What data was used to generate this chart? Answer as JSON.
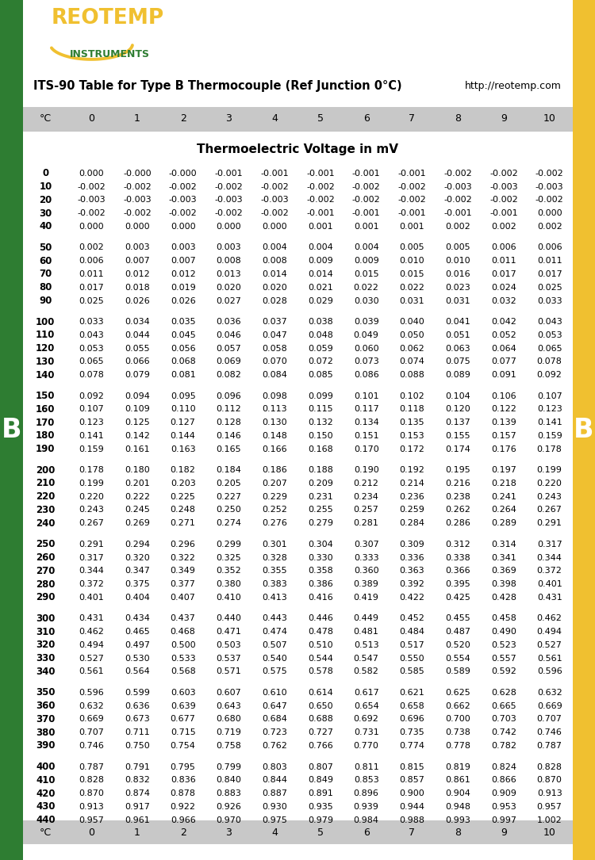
{
  "title": "ITS-90 Table for Type B Thermocouple (Ref Junction 0°C)",
  "subtitle": "Thermoelectric Voltage in mV",
  "url": "http://reotemp.com",
  "col_headers": [
    "°C",
    "0",
    "1",
    "2",
    "3",
    "4",
    "5",
    "6",
    "7",
    "8",
    "9",
    "10"
  ],
  "table_data": [
    [
      "0",
      "0.000",
      "-0.000",
      "-0.000",
      "-0.001",
      "-0.001",
      "-0.001",
      "-0.001",
      "-0.001",
      "-0.002",
      "-0.002",
      "-0.002"
    ],
    [
      "10",
      "-0.002",
      "-0.002",
      "-0.002",
      "-0.002",
      "-0.002",
      "-0.002",
      "-0.002",
      "-0.002",
      "-0.003",
      "-0.003",
      "-0.003"
    ],
    [
      "20",
      "-0.003",
      "-0.003",
      "-0.003",
      "-0.003",
      "-0.003",
      "-0.002",
      "-0.002",
      "-0.002",
      "-0.002",
      "-0.002",
      "-0.002"
    ],
    [
      "30",
      "-0.002",
      "-0.002",
      "-0.002",
      "-0.002",
      "-0.002",
      "-0.001",
      "-0.001",
      "-0.001",
      "-0.001",
      "-0.001",
      "0.000"
    ],
    [
      "40",
      "0.000",
      "0.000",
      "0.000",
      "0.000",
      "0.000",
      "0.001",
      "0.001",
      "0.001",
      "0.002",
      "0.002",
      "0.002"
    ],
    [
      "",
      "",
      "",
      "",
      "",
      "",
      "",
      "",
      "",
      "",
      "",
      ""
    ],
    [
      "50",
      "0.002",
      "0.003",
      "0.003",
      "0.003",
      "0.004",
      "0.004",
      "0.004",
      "0.005",
      "0.005",
      "0.006",
      "0.006"
    ],
    [
      "60",
      "0.006",
      "0.007",
      "0.007",
      "0.008",
      "0.008",
      "0.009",
      "0.009",
      "0.010",
      "0.010",
      "0.011",
      "0.011"
    ],
    [
      "70",
      "0.011",
      "0.012",
      "0.012",
      "0.013",
      "0.014",
      "0.014",
      "0.015",
      "0.015",
      "0.016",
      "0.017",
      "0.017"
    ],
    [
      "80",
      "0.017",
      "0.018",
      "0.019",
      "0.020",
      "0.020",
      "0.021",
      "0.022",
      "0.022",
      "0.023",
      "0.024",
      "0.025"
    ],
    [
      "90",
      "0.025",
      "0.026",
      "0.026",
      "0.027",
      "0.028",
      "0.029",
      "0.030",
      "0.031",
      "0.031",
      "0.032",
      "0.033"
    ],
    [
      "",
      "",
      "",
      "",
      "",
      "",
      "",
      "",
      "",
      "",
      "",
      ""
    ],
    [
      "100",
      "0.033",
      "0.034",
      "0.035",
      "0.036",
      "0.037",
      "0.038",
      "0.039",
      "0.040",
      "0.041",
      "0.042",
      "0.043"
    ],
    [
      "110",
      "0.043",
      "0.044",
      "0.045",
      "0.046",
      "0.047",
      "0.048",
      "0.049",
      "0.050",
      "0.051",
      "0.052",
      "0.053"
    ],
    [
      "120",
      "0.053",
      "0.055",
      "0.056",
      "0.057",
      "0.058",
      "0.059",
      "0.060",
      "0.062",
      "0.063",
      "0.064",
      "0.065"
    ],
    [
      "130",
      "0.065",
      "0.066",
      "0.068",
      "0.069",
      "0.070",
      "0.072",
      "0.073",
      "0.074",
      "0.075",
      "0.077",
      "0.078"
    ],
    [
      "140",
      "0.078",
      "0.079",
      "0.081",
      "0.082",
      "0.084",
      "0.085",
      "0.086",
      "0.088",
      "0.089",
      "0.091",
      "0.092"
    ],
    [
      "",
      "",
      "",
      "",
      "",
      "",
      "",
      "",
      "",
      "",
      "",
      ""
    ],
    [
      "150",
      "0.092",
      "0.094",
      "0.095",
      "0.096",
      "0.098",
      "0.099",
      "0.101",
      "0.102",
      "0.104",
      "0.106",
      "0.107"
    ],
    [
      "160",
      "0.107",
      "0.109",
      "0.110",
      "0.112",
      "0.113",
      "0.115",
      "0.117",
      "0.118",
      "0.120",
      "0.122",
      "0.123"
    ],
    [
      "170",
      "0.123",
      "0.125",
      "0.127",
      "0.128",
      "0.130",
      "0.132",
      "0.134",
      "0.135",
      "0.137",
      "0.139",
      "0.141"
    ],
    [
      "180",
      "0.141",
      "0.142",
      "0.144",
      "0.146",
      "0.148",
      "0.150",
      "0.151",
      "0.153",
      "0.155",
      "0.157",
      "0.159"
    ],
    [
      "190",
      "0.159",
      "0.161",
      "0.163",
      "0.165",
      "0.166",
      "0.168",
      "0.170",
      "0.172",
      "0.174",
      "0.176",
      "0.178"
    ],
    [
      "",
      "",
      "",
      "",
      "",
      "",
      "",
      "",
      "",
      "",
      "",
      ""
    ],
    [
      "200",
      "0.178",
      "0.180",
      "0.182",
      "0.184",
      "0.186",
      "0.188",
      "0.190",
      "0.192",
      "0.195",
      "0.197",
      "0.199"
    ],
    [
      "210",
      "0.199",
      "0.201",
      "0.203",
      "0.205",
      "0.207",
      "0.209",
      "0.212",
      "0.214",
      "0.216",
      "0.218",
      "0.220"
    ],
    [
      "220",
      "0.220",
      "0.222",
      "0.225",
      "0.227",
      "0.229",
      "0.231",
      "0.234",
      "0.236",
      "0.238",
      "0.241",
      "0.243"
    ],
    [
      "230",
      "0.243",
      "0.245",
      "0.248",
      "0.250",
      "0.252",
      "0.255",
      "0.257",
      "0.259",
      "0.262",
      "0.264",
      "0.267"
    ],
    [
      "240",
      "0.267",
      "0.269",
      "0.271",
      "0.274",
      "0.276",
      "0.279",
      "0.281",
      "0.284",
      "0.286",
      "0.289",
      "0.291"
    ],
    [
      "",
      "",
      "",
      "",
      "",
      "",
      "",
      "",
      "",
      "",
      "",
      ""
    ],
    [
      "250",
      "0.291",
      "0.294",
      "0.296",
      "0.299",
      "0.301",
      "0.304",
      "0.307",
      "0.309",
      "0.312",
      "0.314",
      "0.317"
    ],
    [
      "260",
      "0.317",
      "0.320",
      "0.322",
      "0.325",
      "0.328",
      "0.330",
      "0.333",
      "0.336",
      "0.338",
      "0.341",
      "0.344"
    ],
    [
      "270",
      "0.344",
      "0.347",
      "0.349",
      "0.352",
      "0.355",
      "0.358",
      "0.360",
      "0.363",
      "0.366",
      "0.369",
      "0.372"
    ],
    [
      "280",
      "0.372",
      "0.375",
      "0.377",
      "0.380",
      "0.383",
      "0.386",
      "0.389",
      "0.392",
      "0.395",
      "0.398",
      "0.401"
    ],
    [
      "290",
      "0.401",
      "0.404",
      "0.407",
      "0.410",
      "0.413",
      "0.416",
      "0.419",
      "0.422",
      "0.425",
      "0.428",
      "0.431"
    ],
    [
      "",
      "",
      "",
      "",
      "",
      "",
      "",
      "",
      "",
      "",
      "",
      ""
    ],
    [
      "300",
      "0.431",
      "0.434",
      "0.437",
      "0.440",
      "0.443",
      "0.446",
      "0.449",
      "0.452",
      "0.455",
      "0.458",
      "0.462"
    ],
    [
      "310",
      "0.462",
      "0.465",
      "0.468",
      "0.471",
      "0.474",
      "0.478",
      "0.481",
      "0.484",
      "0.487",
      "0.490",
      "0.494"
    ],
    [
      "320",
      "0.494",
      "0.497",
      "0.500",
      "0.503",
      "0.507",
      "0.510",
      "0.513",
      "0.517",
      "0.520",
      "0.523",
      "0.527"
    ],
    [
      "330",
      "0.527",
      "0.530",
      "0.533",
      "0.537",
      "0.540",
      "0.544",
      "0.547",
      "0.550",
      "0.554",
      "0.557",
      "0.561"
    ],
    [
      "340",
      "0.561",
      "0.564",
      "0.568",
      "0.571",
      "0.575",
      "0.578",
      "0.582",
      "0.585",
      "0.589",
      "0.592",
      "0.596"
    ],
    [
      "",
      "",
      "",
      "",
      "",
      "",
      "",
      "",
      "",
      "",
      "",
      ""
    ],
    [
      "350",
      "0.596",
      "0.599",
      "0.603",
      "0.607",
      "0.610",
      "0.614",
      "0.617",
      "0.621",
      "0.625",
      "0.628",
      "0.632"
    ],
    [
      "360",
      "0.632",
      "0.636",
      "0.639",
      "0.643",
      "0.647",
      "0.650",
      "0.654",
      "0.658",
      "0.662",
      "0.665",
      "0.669"
    ],
    [
      "370",
      "0.669",
      "0.673",
      "0.677",
      "0.680",
      "0.684",
      "0.688",
      "0.692",
      "0.696",
      "0.700",
      "0.703",
      "0.707"
    ],
    [
      "380",
      "0.707",
      "0.711",
      "0.715",
      "0.719",
      "0.723",
      "0.727",
      "0.731",
      "0.735",
      "0.738",
      "0.742",
      "0.746"
    ],
    [
      "390",
      "0.746",
      "0.750",
      "0.754",
      "0.758",
      "0.762",
      "0.766",
      "0.770",
      "0.774",
      "0.778",
      "0.782",
      "0.787"
    ],
    [
      "",
      "",
      "",
      "",
      "",
      "",
      "",
      "",
      "",
      "",
      "",
      ""
    ],
    [
      "400",
      "0.787",
      "0.791",
      "0.795",
      "0.799",
      "0.803",
      "0.807",
      "0.811",
      "0.815",
      "0.819",
      "0.824",
      "0.828"
    ],
    [
      "410",
      "0.828",
      "0.832",
      "0.836",
      "0.840",
      "0.844",
      "0.849",
      "0.853",
      "0.857",
      "0.861",
      "0.866",
      "0.870"
    ],
    [
      "420",
      "0.870",
      "0.874",
      "0.878",
      "0.883",
      "0.887",
      "0.891",
      "0.896",
      "0.900",
      "0.904",
      "0.909",
      "0.913"
    ],
    [
      "430",
      "0.913",
      "0.917",
      "0.922",
      "0.926",
      "0.930",
      "0.935",
      "0.939",
      "0.944",
      "0.948",
      "0.953",
      "0.957"
    ],
    [
      "440",
      "0.957",
      "0.961",
      "0.966",
      "0.970",
      "0.975",
      "0.979",
      "0.984",
      "0.988",
      "0.993",
      "0.997",
      "1.002"
    ]
  ],
  "left_bar_color": "#2e7d32",
  "right_bar_color": "#f0c030",
  "header_bg": "#c8c8c8",
  "reotemp_color": "#f0c030",
  "instruments_color": "#2e7d32"
}
